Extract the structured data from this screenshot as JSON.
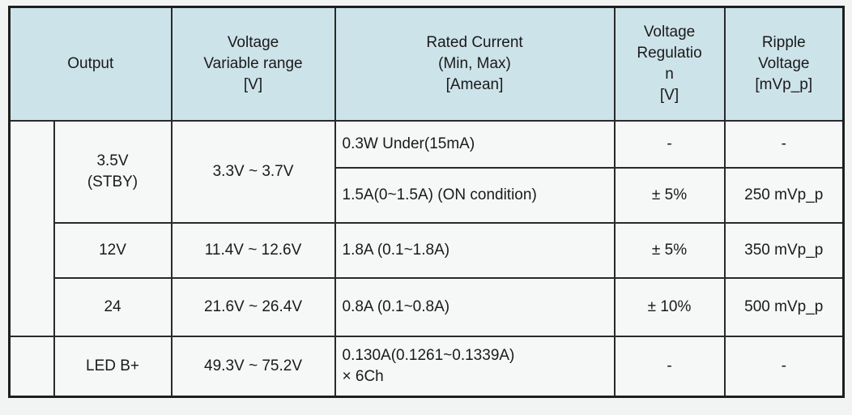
{
  "header": {
    "output": "Output",
    "voltage_range": [
      "Voltage",
      "Variable range",
      "[V]"
    ],
    "rated_current": [
      "Rated Current",
      "(Min, Max)",
      "[Amean]"
    ],
    "voltage_regulation": [
      "Voltage",
      "Regulatio",
      "n",
      "[V]"
    ],
    "ripple_voltage": [
      "Ripple",
      "Voltage",
      "[mVp_p]"
    ]
  },
  "rows": [
    {
      "output": [
        "3.5V",
        "(STBY)"
      ],
      "voltage_range": "3.3V ~ 3.7V",
      "sub_rows": [
        {
          "rated_current": "0.3W Under(15mA)",
          "voltage_regulation": "-",
          "ripple_voltage": "-"
        },
        {
          "rated_current": "1.5A(0~1.5A) (ON condition)",
          "voltage_regulation": "± 5%",
          "ripple_voltage": "250 mVp_p"
        }
      ]
    },
    {
      "output": "12V",
      "voltage_range": "11.4V ~ 12.6V",
      "rated_current": "1.8A (0.1~1.8A)",
      "voltage_regulation": "± 5%",
      "ripple_voltage": "350 mVp_p"
    },
    {
      "output": "24",
      "voltage_range": "21.6V ~ 26.4V",
      "rated_current": "0.8A (0.1~0.8A)",
      "voltage_regulation": "± 10%",
      "ripple_voltage": "500 mVp_p"
    },
    {
      "output": "LED B+",
      "voltage_range": "49.3V ~ 75.2V",
      "rated_current": [
        "0.130A(0.1261~0.1339A)",
        "× 6Ch"
      ],
      "voltage_regulation": "-",
      "ripple_voltage": "-"
    }
  ]
}
